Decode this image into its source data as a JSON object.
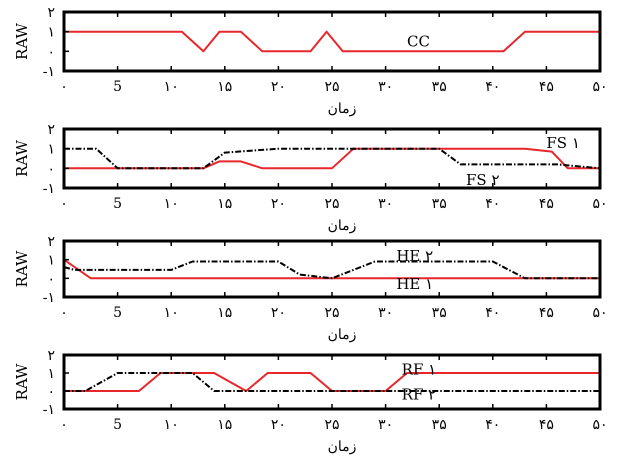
{
  "chart_data": [
    {
      "type": "line",
      "xlabel": "زمان",
      "ylabel": "RAW",
      "xlim": [
        0,
        50
      ],
      "ylim": [
        -1,
        2
      ],
      "xticks": [
        0,
        5,
        10,
        15,
        20,
        25,
        30,
        35,
        40,
        45,
        50
      ],
      "xtick_labels": [
        "۰",
        "5",
        "۱۰",
        "۱۵",
        "۲۰",
        "۲۵",
        "۳۰",
        "۳۵",
        "۴۰",
        "۴۵",
        "۵۰"
      ],
      "yticks": [
        -1,
        0,
        1,
        2
      ],
      "ytick_labels": [
        "-۱",
        "۰",
        "۱",
        "۲"
      ],
      "series": [
        {
          "name": "CC",
          "color": "#e8262b",
          "style": "solid",
          "x": [
            0,
            11,
            13,
            14.5,
            16.5,
            18.5,
            23,
            24.5,
            26,
            41,
            43,
            50
          ],
          "y": [
            1,
            1,
            0,
            1,
            1,
            0,
            0,
            1,
            0,
            0,
            1,
            1
          ]
        }
      ],
      "annotations": [
        {
          "text": "CC",
          "x": 32,
          "y": 0.5
        }
      ]
    },
    {
      "type": "line",
      "xlabel": "زمان",
      "ylabel": "RAW",
      "xlim": [
        0,
        50
      ],
      "ylim": [
        -1,
        2
      ],
      "xticks": [
        0,
        5,
        10,
        15,
        20,
        25,
        30,
        35,
        40,
        45,
        50
      ],
      "xtick_labels": [
        "۰",
        "5",
        "۱۰",
        "۱۵",
        "۲۰",
        "۲۵",
        "۳۰",
        "۳۵",
        "۴۰",
        "۴۵",
        "۵۰"
      ],
      "yticks": [
        -1,
        0,
        1,
        2
      ],
      "ytick_labels": [
        "-۱",
        "۰",
        "۱",
        "۲"
      ],
      "series": [
        {
          "name": "FS ۱",
          "color": "#e8262b",
          "style": "solid",
          "x": [
            0,
            13,
            14.5,
            16.5,
            18.5,
            25,
            27,
            43,
            45.5,
            47,
            50
          ],
          "y": [
            0,
            0,
            0.35,
            0.35,
            0,
            0,
            1,
            1,
            0.85,
            0,
            0
          ]
        },
        {
          "name": "FS ۲",
          "color": "#000000",
          "style": "dashdot",
          "x": [
            0,
            3,
            5,
            13,
            15,
            20,
            35,
            37,
            40,
            43,
            46,
            50
          ],
          "y": [
            1,
            1,
            0,
            0,
            0.8,
            1,
            1,
            0.2,
            0.2,
            0.2,
            0.2,
            0
          ]
        }
      ],
      "annotations": [
        {
          "text": "FS ۱",
          "x": 45,
          "y": 1.3
        },
        {
          "text": "FS ۲",
          "x": 37.5,
          "y": -0.6
        }
      ]
    },
    {
      "type": "line",
      "xlabel": "زمان",
      "ylabel": "RAW",
      "xlim": [
        0,
        50
      ],
      "ylim": [
        -1,
        2
      ],
      "xticks": [
        0,
        5,
        10,
        15,
        20,
        25,
        30,
        35,
        40,
        45,
        50
      ],
      "xtick_labels": [
        "۰",
        "5",
        "۱۰",
        "۱۵",
        "۲۰",
        "۲۵",
        "۳۰",
        "۳۵",
        "۴۰",
        "۴۵",
        "۵۰"
      ],
      "yticks": [
        -1,
        0,
        1,
        2
      ],
      "ytick_labels": [
        "-۱",
        "۰",
        "۱",
        "۲"
      ],
      "series": [
        {
          "name": "HE ۱",
          "color": "#e8262b",
          "style": "solid",
          "x": [
            0,
            2.5,
            50
          ],
          "y": [
            1,
            0,
            0
          ]
        },
        {
          "name": "HE ۲",
          "color": "#000000",
          "style": "dashdot",
          "x": [
            0,
            1,
            10,
            12,
            20,
            22,
            25,
            29,
            32,
            36,
            40,
            43,
            50
          ],
          "y": [
            0.6,
            0.45,
            0.45,
            0.9,
            0.9,
            0.2,
            0,
            0.9,
            0.9,
            0.9,
            0.9,
            0,
            0
          ]
        }
      ],
      "annotations": [
        {
          "text": "HE ۲",
          "x": 31,
          "y": 1.2
        },
        {
          "text": "HE ۱",
          "x": 31,
          "y": -0.3
        }
      ]
    },
    {
      "type": "line",
      "xlabel": "زمان",
      "ylabel": "RAW",
      "xlim": [
        0,
        50
      ],
      "ylim": [
        -1,
        2
      ],
      "xticks": [
        0,
        5,
        10,
        15,
        20,
        25,
        30,
        35,
        40,
        45,
        50
      ],
      "xtick_labels": [
        "۰",
        "5",
        "۱۰",
        "۱۵",
        "۲۰",
        "۲۵",
        "۳۰",
        "۳۵",
        "۴۰",
        "۴۵",
        "۵۰"
      ],
      "yticks": [
        -1,
        0,
        1,
        2
      ],
      "ytick_labels": [
        "-۱",
        "۰",
        "۱",
        "۲"
      ],
      "series": [
        {
          "name": "RF ۱",
          "color": "#e8262b",
          "style": "solid",
          "x": [
            0,
            1,
            7,
            9,
            12,
            14,
            17,
            19,
            23,
            25,
            30,
            32,
            50
          ],
          "y": [
            0,
            0,
            0,
            1,
            1,
            1,
            0,
            1,
            1,
            0,
            0,
            1,
            1
          ]
        },
        {
          "name": "RF ۲",
          "color": "#000000",
          "style": "dashdot",
          "x": [
            0,
            2,
            5,
            12,
            14,
            50
          ],
          "y": [
            0,
            0,
            1,
            1,
            0,
            0
          ]
        }
      ],
      "annotations": [
        {
          "text": "RF ۱",
          "x": 31.5,
          "y": 1.2
        },
        {
          "text": "RF ۲",
          "x": 31.5,
          "y": -0.2
        }
      ]
    }
  ]
}
